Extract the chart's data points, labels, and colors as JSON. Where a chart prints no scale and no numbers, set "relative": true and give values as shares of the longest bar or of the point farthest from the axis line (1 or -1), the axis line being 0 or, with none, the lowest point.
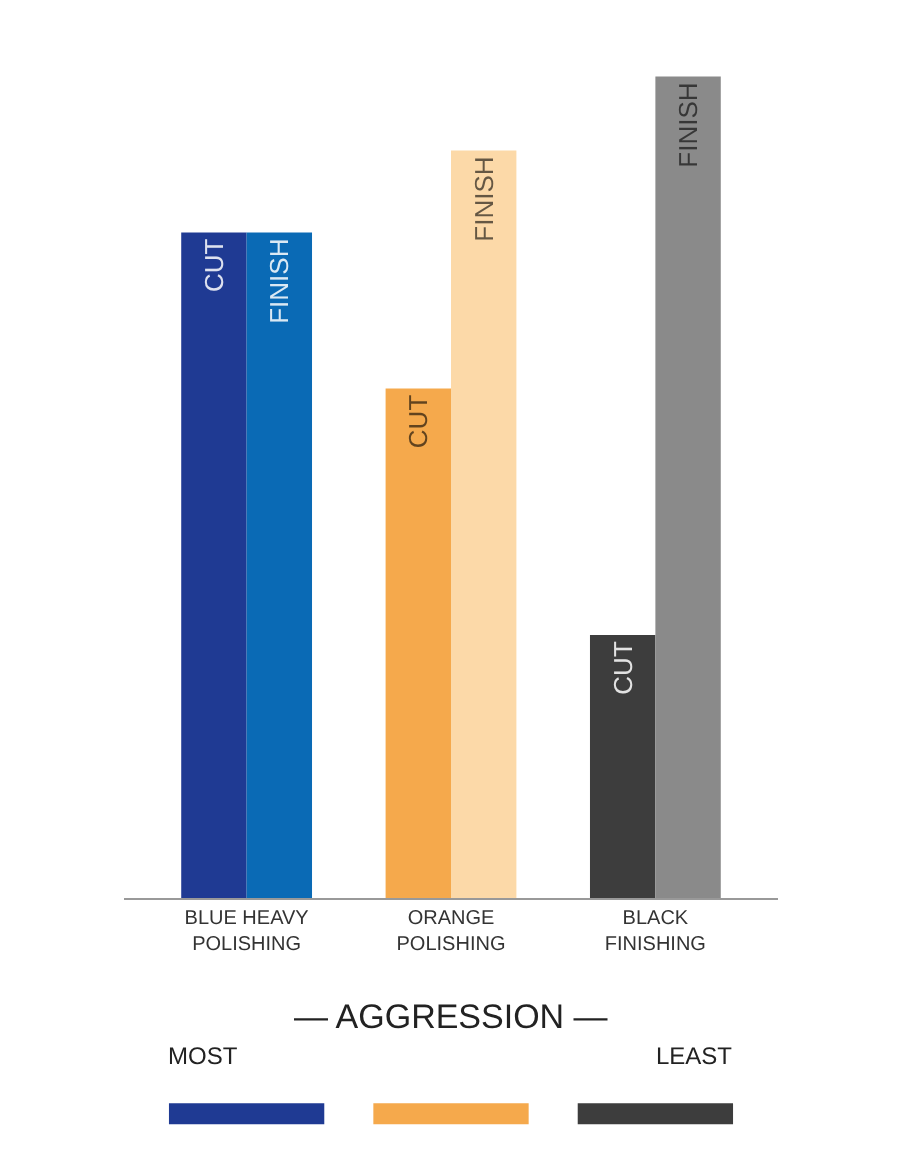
{
  "chart_data": {
    "type": "bar",
    "relative": true,
    "categories": [
      "BLUE HEAVY POLISHING",
      "ORANGE POLISHING",
      "BLACK FINISHING"
    ],
    "series": [
      {
        "name": "CUT",
        "colors": [
          "#1f3a93",
          "#f5a94c",
          "#3d3d3d"
        ],
        "values": [
          0.81,
          0.62,
          0.32
        ]
      },
      {
        "name": "FINISH",
        "colors": [
          "#0a6ab5",
          "#fcd9a8",
          "#8a8a8a"
        ],
        "values": [
          0.81,
          0.91,
          1
        ]
      }
    ],
    "annotations": [
      "— AGGRESSION —",
      "MOST",
      "LEAST"
    ],
    "legend": false
  }
}
